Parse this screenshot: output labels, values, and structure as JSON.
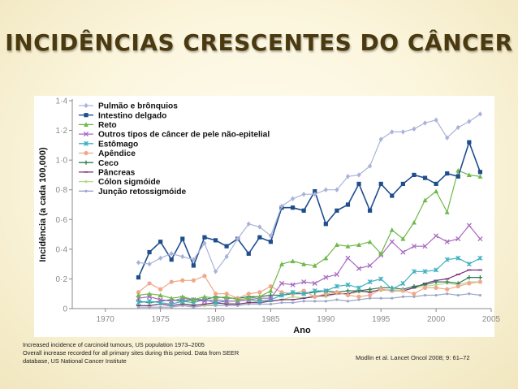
{
  "slide": {
    "title": "INCIDÊNCIAS CRESCENTES DO CÂNCER",
    "caption_lines": [
      "Increased incidence of carcinoid tumours, US population 1973–2005",
      "Overall increase recorded for all primary sites during this period. Data from SEER",
      "database, US National Cancer Institute"
    ],
    "citation": "Modlin et al. Lancet Oncol 2008; 9: 61–72"
  },
  "chart_data": {
    "type": "line",
    "title": "",
    "xlabel": "Ano",
    "ylabel": "Incidência (a cada 100,000)",
    "xlim": [
      1967,
      2005
    ],
    "ylim": [
      0,
      1.4
    ],
    "x_ticks": [
      1970,
      1975,
      1980,
      1985,
      1990,
      1995,
      2000,
      2005
    ],
    "y_ticks": [
      0,
      0.2,
      0.4,
      0.6,
      0.8,
      1.0,
      1.2,
      1.4
    ],
    "y_tick_labels": [
      "0",
      "0·2",
      "0·4",
      "0·6",
      "0·8",
      "1·0",
      "1·2",
      "1·4"
    ],
    "grid": false,
    "legend_position": "top-left",
    "x": [
      1973,
      1974,
      1975,
      1976,
      1977,
      1978,
      1979,
      1980,
      1981,
      1982,
      1983,
      1984,
      1985,
      1986,
      1987,
      1988,
      1989,
      1990,
      1991,
      1992,
      1993,
      1994,
      1995,
      1996,
      1997,
      1998,
      1999,
      2000,
      2001,
      2002,
      2003,
      2004
    ],
    "series": [
      {
        "name": "Pulmão e brônquios",
        "color": "#a9b3d9",
        "marker": "diamond",
        "values": [
          0.31,
          0.3,
          0.34,
          0.37,
          0.35,
          0.33,
          0.44,
          0.25,
          0.35,
          0.47,
          0.57,
          0.55,
          0.49,
          0.69,
          0.74,
          0.77,
          0.77,
          0.8,
          0.8,
          0.89,
          0.9,
          0.96,
          1.14,
          1.19,
          1.19,
          1.21,
          1.25,
          1.27,
          1.15,
          1.22,
          1.26,
          1.31
        ]
      },
      {
        "name": "Intestino delgado",
        "color": "#1f4e8c",
        "marker": "square",
        "values": [
          0.21,
          0.38,
          0.45,
          0.33,
          0.47,
          0.29,
          0.48,
          0.46,
          0.42,
          0.47,
          0.37,
          0.48,
          0.45,
          0.68,
          0.68,
          0.66,
          0.79,
          0.57,
          0.66,
          0.7,
          0.84,
          0.66,
          0.84,
          0.76,
          0.84,
          0.9,
          0.88,
          0.84,
          0.91,
          0.89,
          1.12,
          0.92
        ]
      },
      {
        "name": "Reto",
        "color": "#6fb84a",
        "marker": "triangle",
        "values": [
          0.09,
          0.1,
          0.09,
          0.07,
          0.08,
          0.06,
          0.08,
          0.07,
          0.08,
          0.06,
          0.07,
          0.08,
          0.12,
          0.3,
          0.32,
          0.3,
          0.29,
          0.34,
          0.43,
          0.42,
          0.43,
          0.45,
          0.37,
          0.53,
          0.47,
          0.58,
          0.73,
          0.79,
          0.65,
          0.93,
          0.9,
          0.89
        ]
      },
      {
        "name": "Outros tipos de câncer de pele não-epitelial",
        "color": "#a86ac1",
        "marker": "x",
        "values": [
          0.07,
          0.08,
          0.06,
          0.05,
          0.07,
          0.06,
          0.05,
          0.06,
          0.05,
          0.05,
          0.06,
          0.07,
          0.07,
          0.17,
          0.16,
          0.18,
          0.17,
          0.21,
          0.23,
          0.34,
          0.27,
          0.29,
          0.36,
          0.45,
          0.38,
          0.42,
          0.42,
          0.49,
          0.45,
          0.47,
          0.56,
          0.47
        ]
      },
      {
        "name": "Estômago",
        "color": "#3fb0c0",
        "marker": "cross",
        "values": [
          0.04,
          0.05,
          0.04,
          0.03,
          0.05,
          0.04,
          0.06,
          0.04,
          0.05,
          0.05,
          0.06,
          0.05,
          0.06,
          0.09,
          0.11,
          0.1,
          0.12,
          0.12,
          0.15,
          0.16,
          0.14,
          0.18,
          0.2,
          0.13,
          0.17,
          0.25,
          0.25,
          0.26,
          0.33,
          0.34,
          0.3,
          0.34
        ]
      },
      {
        "name": "Apêndice",
        "color": "#f0a88a",
        "marker": "circle",
        "values": [
          0.11,
          0.17,
          0.13,
          0.18,
          0.19,
          0.19,
          0.22,
          0.1,
          0.1,
          0.07,
          0.1,
          0.11,
          0.15,
          0.11,
          0.1,
          0.12,
          0.08,
          0.1,
          0.11,
          0.09,
          0.08,
          0.09,
          0.13,
          0.12,
          0.12,
          0.1,
          0.14,
          0.14,
          0.13,
          0.15,
          0.17,
          0.18
        ]
      },
      {
        "name": "Ceco",
        "color": "#2e7d55",
        "marker": "plus",
        "values": [
          0.05,
          0.04,
          0.05,
          0.06,
          0.05,
          0.06,
          0.06,
          0.08,
          0.07,
          0.07,
          0.08,
          0.08,
          0.09,
          0.09,
          0.1,
          0.1,
          0.11,
          0.12,
          0.11,
          0.12,
          0.12,
          0.13,
          0.14,
          0.14,
          0.13,
          0.15,
          0.16,
          0.18,
          0.18,
          0.17,
          0.21,
          0.21
        ]
      },
      {
        "name": "Pâncreas",
        "color": "#7a2f7a",
        "marker": "dash",
        "values": [
          0.02,
          0.02,
          0.03,
          0.02,
          0.03,
          0.02,
          0.03,
          0.04,
          0.03,
          0.03,
          0.04,
          0.04,
          0.05,
          0.06,
          0.06,
          0.07,
          0.08,
          0.09,
          0.1,
          0.1,
          0.12,
          0.11,
          0.13,
          0.12,
          0.12,
          0.14,
          0.17,
          0.19,
          0.2,
          0.23,
          0.26,
          0.26
        ]
      },
      {
        "name": "Cólon sigmóide",
        "color": "#b9d98a",
        "marker": "dot",
        "values": [
          0.02,
          0.02,
          0.03,
          0.02,
          0.03,
          0.03,
          0.02,
          0.03,
          0.04,
          0.03,
          0.04,
          0.05,
          0.05,
          0.06,
          0.08,
          0.07,
          0.09,
          0.08,
          0.1,
          0.1,
          0.11,
          0.12,
          0.12,
          0.13,
          0.12,
          0.14,
          0.15,
          0.16,
          0.17,
          0.16,
          0.18,
          0.18
        ]
      },
      {
        "name": "Junção retossigmóide",
        "color": "#9aa5c9",
        "marker": "dot",
        "values": [
          0.01,
          0.01,
          0.01,
          0.01,
          0.02,
          0.01,
          0.02,
          0.02,
          0.02,
          0.02,
          0.03,
          0.03,
          0.03,
          0.04,
          0.04,
          0.05,
          0.05,
          0.05,
          0.06,
          0.05,
          0.06,
          0.07,
          0.07,
          0.07,
          0.08,
          0.08,
          0.09,
          0.09,
          0.1,
          0.09,
          0.1,
          0.09
        ]
      }
    ]
  }
}
